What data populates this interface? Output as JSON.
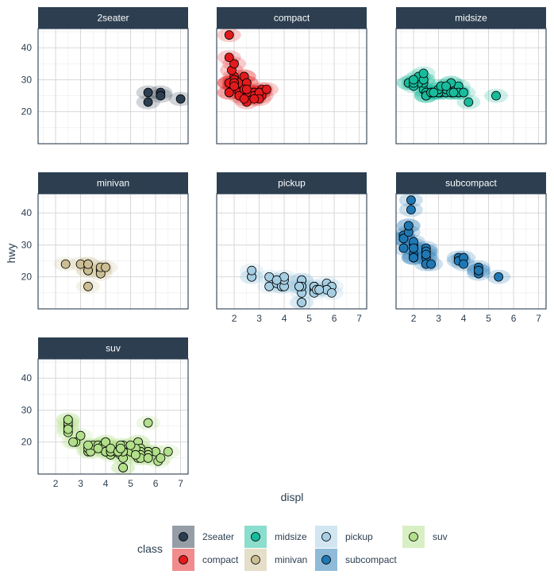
{
  "chart_data": {
    "type": "scatter",
    "facet_by": "class",
    "xlabel": "displ",
    "ylabel": "hwy",
    "xlim": [
      1.3,
      7.3
    ],
    "ylim": [
      10,
      46
    ],
    "x_ticks": [
      2,
      3,
      4,
      5,
      6,
      7
    ],
    "y_ticks": [
      20,
      30,
      40
    ],
    "grid": true,
    "legend": {
      "title": "class",
      "placement": "bottom",
      "entries": [
        {
          "name": "2seater",
          "color": "#2c3e50"
        },
        {
          "name": "compact",
          "color": "#e31a1c"
        },
        {
          "name": "midsize",
          "color": "#18bc9c"
        },
        {
          "name": "minivan",
          "color": "#ccbe93"
        },
        {
          "name": "pickup",
          "color": "#a6cee3"
        },
        {
          "name": "subcompact",
          "color": "#1f78b4"
        },
        {
          "name": "suv",
          "color": "#b2df8a"
        }
      ]
    },
    "panels": [
      {
        "name": "2seater",
        "color": "#2c3e50",
        "points": [
          [
            5.7,
            26
          ],
          [
            5.7,
            23
          ],
          [
            6.2,
            26
          ],
          [
            6.2,
            25
          ],
          [
            7.0,
            24
          ]
        ]
      },
      {
        "name": "compact",
        "color": "#e31a1c",
        "points": [
          [
            1.8,
            29
          ],
          [
            1.8,
            29
          ],
          [
            2.0,
            31
          ],
          [
            2.0,
            30
          ],
          [
            2.8,
            26
          ],
          [
            2.8,
            26
          ],
          [
            3.1,
            27
          ],
          [
            1.8,
            26
          ],
          [
            2.0,
            28
          ],
          [
            2.8,
            25
          ],
          [
            3.1,
            25
          ],
          [
            2.2,
            27
          ],
          [
            2.2,
            29
          ],
          [
            2.4,
            31
          ],
          [
            2.4,
            31
          ],
          [
            3.0,
            26
          ],
          [
            3.0,
            26
          ],
          [
            3.3,
            27
          ],
          [
            1.8,
            44
          ],
          [
            1.8,
            29
          ],
          [
            1.8,
            26
          ],
          [
            2.0,
            29
          ],
          [
            2.0,
            29
          ],
          [
            2.5,
            29
          ],
          [
            2.5,
            29
          ],
          [
            2.5,
            26
          ],
          [
            2.5,
            23
          ],
          [
            2.2,
            26
          ],
          [
            2.2,
            25
          ],
          [
            2.4,
            27
          ],
          [
            2.4,
            24
          ],
          [
            3.0,
            24
          ],
          [
            1.9,
            33
          ],
          [
            2.0,
            35
          ],
          [
            1.8,
            37
          ],
          [
            2.8,
            24
          ],
          [
            2.5,
            27
          ],
          [
            2.0,
            28
          ]
        ]
      },
      {
        "name": "midsize",
        "color": "#18bc9c",
        "points": [
          [
            2.4,
            27
          ],
          [
            2.4,
            30
          ],
          [
            3.1,
            26
          ],
          [
            3.5,
            29
          ],
          [
            3.6,
            26
          ],
          [
            2.4,
            29
          ],
          [
            3.0,
            26
          ],
          [
            3.3,
            26
          ],
          [
            3.3,
            27
          ],
          [
            3.8,
            26
          ],
          [
            3.8,
            28
          ],
          [
            3.8,
            26
          ],
          [
            4.0,
            26
          ],
          [
            5.3,
            25
          ],
          [
            2.2,
            29
          ],
          [
            2.2,
            31
          ],
          [
            2.4,
            30
          ],
          [
            2.4,
            32
          ],
          [
            3.0,
            26
          ],
          [
            3.0,
            27
          ],
          [
            3.5,
            26
          ],
          [
            2.5,
            26
          ],
          [
            2.5,
            25
          ],
          [
            2.5,
            25
          ],
          [
            2.5,
            25
          ],
          [
            2.7,
            26
          ],
          [
            2.7,
            26
          ],
          [
            3.5,
            29
          ],
          [
            2.8,
            26
          ],
          [
            3.0,
            27
          ],
          [
            4.2,
            23
          ],
          [
            1.8,
            29
          ],
          [
            1.8,
            29
          ],
          [
            2.0,
            28
          ],
          [
            2.0,
            29
          ],
          [
            2.8,
            26
          ],
          [
            3.1,
            28
          ],
          [
            3.6,
            26
          ],
          [
            3.3,
            28
          ],
          [
            2.0,
            30
          ]
        ]
      },
      {
        "name": "minivan",
        "color": "#ccbe93",
        "points": [
          [
            2.4,
            24
          ],
          [
            3.0,
            24
          ],
          [
            3.3,
            22
          ],
          [
            3.3,
            22
          ],
          [
            3.3,
            24
          ],
          [
            3.3,
            24
          ],
          [
            3.3,
            17
          ],
          [
            3.8,
            22
          ],
          [
            3.8,
            21
          ],
          [
            3.8,
            23
          ],
          [
            4.0,
            23
          ]
        ]
      },
      {
        "name": "pickup",
        "color": "#a6cee3",
        "points": [
          [
            2.7,
            20
          ],
          [
            2.7,
            20
          ],
          [
            3.4,
            17
          ],
          [
            3.7,
            19
          ],
          [
            3.7,
            18
          ],
          [
            3.9,
            17
          ],
          [
            3.9,
            17
          ],
          [
            4.7,
            19
          ],
          [
            4.7,
            12
          ],
          [
            4.7,
            17
          ],
          [
            4.7,
            17
          ],
          [
            5.2,
            16
          ],
          [
            5.2,
            15
          ],
          [
            5.7,
            18
          ],
          [
            5.9,
            17
          ],
          [
            4.7,
            19
          ],
          [
            4.7,
            19
          ],
          [
            4.7,
            12
          ],
          [
            5.2,
            17
          ],
          [
            5.2,
            17
          ],
          [
            5.7,
            16
          ],
          [
            5.9,
            15
          ],
          [
            2.7,
            22
          ],
          [
            3.4,
            20
          ],
          [
            4.0,
            17
          ],
          [
            4.7,
            15
          ],
          [
            4.7,
            17
          ],
          [
            5.3,
            16
          ],
          [
            4.0,
            19
          ],
          [
            4.0,
            20
          ],
          [
            4.6,
            17
          ],
          [
            4.6,
            17
          ],
          [
            5.4,
            16
          ],
          [
            3.7,
            19
          ]
        ]
      },
      {
        "name": "subcompact",
        "color": "#1f78b4",
        "points": [
          [
            3.8,
            26
          ],
          [
            3.8,
            25
          ],
          [
            4.0,
            26
          ],
          [
            4.0,
            24
          ],
          [
            4.6,
            21
          ],
          [
            4.6,
            22
          ],
          [
            4.6,
            23
          ],
          [
            4.6,
            22
          ],
          [
            5.4,
            20
          ],
          [
            1.6,
            33
          ],
          [
            1.6,
            32
          ],
          [
            1.6,
            32
          ],
          [
            1.6,
            29
          ],
          [
            1.6,
            32
          ],
          [
            1.8,
            34
          ],
          [
            1.8,
            36
          ],
          [
            1.8,
            36
          ],
          [
            2.0,
            29
          ],
          [
            2.0,
            26
          ],
          [
            2.0,
            27
          ],
          [
            2.0,
            30
          ],
          [
            2.0,
            31
          ],
          [
            2.0,
            26
          ],
          [
            2.5,
            26
          ],
          [
            2.5,
            28
          ],
          [
            2.5,
            26
          ],
          [
            2.5,
            29
          ],
          [
            2.5,
            28
          ],
          [
            2.5,
            27
          ],
          [
            2.5,
            24
          ],
          [
            2.7,
            24
          ],
          [
            1.9,
            44
          ],
          [
            1.9,
            41
          ],
          [
            2.0,
            29
          ],
          [
            2.0,
            26
          ]
        ]
      },
      {
        "name": "suv",
        "color": "#b2df8a",
        "points": [
          [
            5.3,
            20
          ],
          [
            5.3,
            15
          ],
          [
            5.3,
            20
          ],
          [
            5.7,
            17
          ],
          [
            6.0,
            17
          ],
          [
            5.7,
            26
          ],
          [
            6.5,
            17
          ],
          [
            4.7,
            17
          ],
          [
            4.7,
            17
          ],
          [
            4.7,
            12
          ],
          [
            5.7,
            17
          ],
          [
            5.7,
            16
          ],
          [
            6.1,
            14
          ],
          [
            4.0,
            17
          ],
          [
            4.0,
            19
          ],
          [
            4.7,
            12
          ],
          [
            4.7,
            19
          ],
          [
            5.7,
            15
          ],
          [
            2.5,
            27
          ],
          [
            2.5,
            25
          ],
          [
            2.5,
            26
          ],
          [
            2.5,
            23
          ],
          [
            2.5,
            24
          ],
          [
            2.5,
            27
          ],
          [
            2.8,
            20
          ],
          [
            3.0,
            22
          ],
          [
            3.3,
            17
          ],
          [
            3.3,
            18
          ],
          [
            3.4,
            17
          ],
          [
            3.5,
            19
          ],
          [
            3.7,
            19
          ],
          [
            3.9,
            19
          ],
          [
            4.0,
            20
          ],
          [
            4.0,
            18
          ],
          [
            4.2,
            16
          ],
          [
            4.4,
            17
          ],
          [
            4.6,
            17
          ],
          [
            4.6,
            19
          ],
          [
            5.4,
            18
          ],
          [
            5.4,
            17
          ],
          [
            5.4,
            16
          ],
          [
            5.4,
            15
          ],
          [
            4.0,
            19
          ],
          [
            4.0,
            17
          ],
          [
            4.6,
            16
          ],
          [
            5.0,
            17
          ],
          [
            3.3,
            19
          ],
          [
            3.7,
            18
          ],
          [
            4.2,
            17
          ],
          [
            4.2,
            17
          ],
          [
            4.7,
            15
          ],
          [
            4.7,
            17
          ],
          [
            5.2,
            18
          ],
          [
            5.7,
            15
          ],
          [
            4.0,
            20
          ],
          [
            4.2,
            18
          ],
          [
            4.5,
            17
          ],
          [
            5.0,
            19
          ],
          [
            6.2,
            15
          ],
          [
            4.6,
            18
          ],
          [
            5.2,
            16
          ],
          [
            2.7,
            20
          ]
        ]
      }
    ]
  }
}
